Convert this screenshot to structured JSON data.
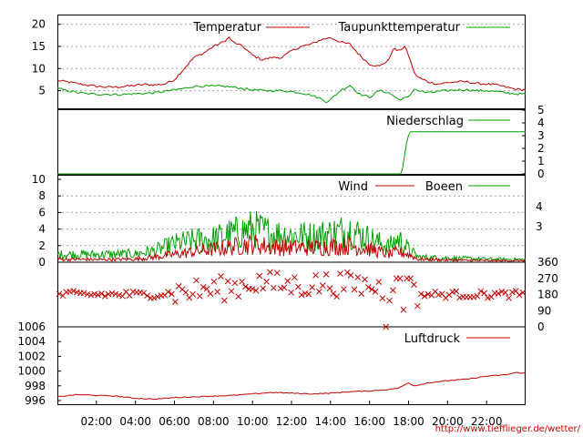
{
  "chart_data": [
    {
      "type": "line",
      "panel": "temperature",
      "x_unit": "hours",
      "xlim": [
        0,
        24
      ],
      "ylim": [
        1,
        22
      ],
      "yticks": [
        5,
        10,
        15,
        20
      ],
      "grid": true,
      "legend_placement": "top-right",
      "series": [
        {
          "name": "Temperatur",
          "color": "#c00000",
          "points": [
            [
              0,
              7.3
            ],
            [
              0.5,
              7.0
            ],
            [
              1,
              6.6
            ],
            [
              1.5,
              6.3
            ],
            [
              2,
              6.0
            ],
            [
              2.5,
              5.8
            ],
            [
              3,
              5.8
            ],
            [
              3.5,
              6.0
            ],
            [
              4,
              6.2
            ],
            [
              4.5,
              6.4
            ],
            [
              5,
              6.3
            ],
            [
              5.5,
              6.5
            ],
            [
              6,
              7.5
            ],
            [
              6.5,
              10
            ],
            [
              7,
              12.5
            ],
            [
              7.5,
              13.5
            ],
            [
              8,
              15
            ],
            [
              8.5,
              16
            ],
            [
              8.8,
              17
            ],
            [
              9,
              16
            ],
            [
              9.5,
              15
            ],
            [
              10,
              13
            ],
            [
              10.5,
              12
            ],
            [
              11,
              12.5
            ],
            [
              11.5,
              12.5
            ],
            [
              12,
              14
            ],
            [
              12.5,
              15
            ],
            [
              13,
              15.5
            ],
            [
              13.5,
              16.5
            ],
            [
              14,
              17
            ],
            [
              14.5,
              16
            ],
            [
              15,
              15.5
            ],
            [
              15.5,
              13
            ],
            [
              16,
              11
            ],
            [
              16.5,
              10.5
            ],
            [
              17,
              12
            ],
            [
              17.2,
              14.5
            ],
            [
              17.5,
              14
            ],
            [
              17.8,
              15
            ],
            [
              18,
              13
            ],
            [
              18.3,
              9
            ],
            [
              18.5,
              8
            ],
            [
              19,
              7
            ],
            [
              19.5,
              6.5
            ],
            [
              20,
              6.8
            ],
            [
              20.5,
              7
            ],
            [
              21,
              7
            ],
            [
              21.5,
              6.6
            ],
            [
              22,
              6.5
            ],
            [
              22.5,
              6.3
            ],
            [
              23,
              5.8
            ],
            [
              23.5,
              5.3
            ],
            [
              24,
              5.2
            ]
          ]
        },
        {
          "name": "Taupunkttemperatur",
          "color": "#00a000",
          "points": [
            [
              0,
              5.5
            ],
            [
              0.5,
              5.0
            ],
            [
              1,
              4.6
            ],
            [
              1.5,
              4.3
            ],
            [
              2,
              4.2
            ],
            [
              2.5,
              4.2
            ],
            [
              3,
              4.1
            ],
            [
              3.5,
              4.2
            ],
            [
              4,
              4.3
            ],
            [
              4.5,
              4.4
            ],
            [
              5,
              4.5
            ],
            [
              5.5,
              4.8
            ],
            [
              6,
              5.2
            ],
            [
              6.5,
              5.5
            ],
            [
              7,
              6
            ],
            [
              7.5,
              6
            ],
            [
              8,
              6
            ],
            [
              8.5,
              6
            ],
            [
              9,
              5.8
            ],
            [
              9.5,
              5.5
            ],
            [
              10,
              5.2
            ],
            [
              10.5,
              5
            ],
            [
              11,
              5
            ],
            [
              11.5,
              5
            ],
            [
              12,
              4.8
            ],
            [
              12.5,
              4.5
            ],
            [
              13,
              4
            ],
            [
              13.5,
              3.2
            ],
            [
              13.8,
              2.5
            ],
            [
              14,
              3
            ],
            [
              14.5,
              5
            ],
            [
              15,
              6.2
            ],
            [
              15.3,
              5
            ],
            [
              15.5,
              4.2
            ],
            [
              16,
              3.5
            ],
            [
              16.5,
              5
            ],
            [
              17,
              4.5
            ],
            [
              17.5,
              3
            ],
            [
              18,
              3.5
            ],
            [
              18.3,
              5.5
            ],
            [
              18.5,
              5
            ],
            [
              19,
              4.5
            ],
            [
              19.5,
              4.8
            ],
            [
              20,
              5
            ],
            [
              20.5,
              5.2
            ],
            [
              21,
              5.2
            ],
            [
              21.5,
              5
            ],
            [
              22,
              5
            ],
            [
              22.5,
              4.8
            ],
            [
              23,
              4.5
            ],
            [
              23.5,
              4.3
            ],
            [
              24,
              4.2
            ]
          ]
        }
      ]
    },
    {
      "type": "line",
      "panel": "precipitation",
      "x_unit": "hours",
      "xlim": [
        0,
        24
      ],
      "ylim": [
        0,
        5
      ],
      "yticks": [
        0,
        1,
        2,
        3,
        4,
        5
      ],
      "legend_placement": "top-right",
      "series": [
        {
          "name": "Niederschlag",
          "color": "#00a000",
          "points": [
            [
              0,
              0
            ],
            [
              17.65,
              0
            ],
            [
              17.8,
              1.5
            ],
            [
              17.95,
              2.9
            ],
            [
              18.1,
              3.3
            ],
            [
              24,
              3.3
            ]
          ]
        }
      ]
    },
    {
      "type": "line",
      "panel": "wind",
      "x_unit": "hours",
      "xlim": [
        0,
        24
      ],
      "ylim": [
        0,
        10
      ],
      "yticks": [
        0,
        2,
        4,
        6,
        8,
        10
      ],
      "right_tick_labels": [
        "4",
        "3"
      ],
      "grid": true,
      "legend_placement": "top-right",
      "series": [
        {
          "name": "Wind",
          "color": "#c00000",
          "envelope": [
            [
              0,
              0.6
            ],
            [
              2,
              0.5
            ],
            [
              4,
              0.6
            ],
            [
              5,
              1
            ],
            [
              6,
              1.5
            ],
            [
              7,
              2
            ],
            [
              8,
              2.5
            ],
            [
              9,
              3
            ],
            [
              10,
              3.5
            ],
            [
              11,
              3
            ],
            [
              12,
              2.8
            ],
            [
              13,
              2.8
            ],
            [
              14,
              3
            ],
            [
              15,
              3.2
            ],
            [
              16,
              2.5
            ],
            [
              17,
              1.5
            ],
            [
              17.5,
              2
            ],
            [
              18,
              1.5
            ],
            [
              18.5,
              0.6
            ],
            [
              20,
              0.4
            ],
            [
              22,
              0.3
            ],
            [
              24,
              0.3
            ]
          ]
        },
        {
          "name": "Boeen",
          "color": "#00a000",
          "envelope": [
            [
              0,
              1.5
            ],
            [
              2,
              1.5
            ],
            [
              4,
              1.6
            ],
            [
              5,
              2.2
            ],
            [
              6,
              3.5
            ],
            [
              7,
              4.2
            ],
            [
              8,
              4.5
            ],
            [
              9,
              5.5
            ],
            [
              10,
              6.5
            ],
            [
              11,
              5.5
            ],
            [
              12,
              5.2
            ],
            [
              13,
              5
            ],
            [
              14,
              5.5
            ],
            [
              15,
              6.2
            ],
            [
              16,
              4.5
            ],
            [
              17,
              3
            ],
            [
              17.5,
              4.5
            ],
            [
              18,
              2.5
            ],
            [
              18.5,
              1
            ],
            [
              20,
              0.8
            ],
            [
              22,
              0.6
            ],
            [
              24,
              0.5
            ]
          ]
        }
      ]
    },
    {
      "type": "scatter",
      "panel": "wind_direction",
      "x_unit": "hours",
      "xlim": [
        0,
        24
      ],
      "ylim": [
        0,
        360
      ],
      "yticks_right": [
        0,
        90,
        180,
        270,
        360
      ],
      "series": [
        {
          "marker": "x",
          "color": "#c00000",
          "base": [
            [
              0,
              180
            ],
            [
              5,
              180
            ],
            [
              7,
              200
            ],
            [
              9,
              220
            ],
            [
              10,
              250
            ],
            [
              12,
              230
            ],
            [
              14,
              240
            ],
            [
              16,
              230
            ],
            [
              17,
              200
            ],
            [
              17.5,
              120
            ],
            [
              18,
              180
            ],
            [
              19,
              180
            ],
            [
              24,
              180
            ]
          ]
        }
      ]
    },
    {
      "type": "line",
      "panel": "pressure",
      "x_unit": "hours",
      "xlim": [
        0,
        24
      ],
      "ylim": [
        995.5,
        1006
      ],
      "yticks": [
        996,
        998,
        1000,
        1002,
        1004,
        1006
      ],
      "legend_placement": "top-right",
      "series": [
        {
          "name": "Luftdruck",
          "color": "#c00000",
          "points": [
            [
              0,
              996.5
            ],
            [
              1,
              996.8
            ],
            [
              2,
              996.7
            ],
            [
              3,
              996.6
            ],
            [
              4,
              996.3
            ],
            [
              5,
              996.2
            ],
            [
              6,
              996.4
            ],
            [
              7,
              996.5
            ],
            [
              8,
              996.6
            ],
            [
              9,
              996.7
            ],
            [
              10,
              996.9
            ],
            [
              11,
              997.1
            ],
            [
              12,
              997.0
            ],
            [
              13,
              996.9
            ],
            [
              14,
              997.0
            ],
            [
              15,
              997.2
            ],
            [
              16,
              997.3
            ],
            [
              17,
              997.5
            ],
            [
              17.5,
              997.7
            ],
            [
              18,
              998.4
            ],
            [
              18.3,
              998.0
            ],
            [
              19,
              998.4
            ],
            [
              20,
              998.7
            ],
            [
              21,
              998.9
            ],
            [
              22,
              999.3
            ],
            [
              23,
              999.5
            ],
            [
              23.5,
              999.8
            ],
            [
              24,
              999.7
            ]
          ]
        }
      ]
    }
  ],
  "x_ticks": [
    "02:00",
    "04:00",
    "06:00",
    "08:00",
    "10:00",
    "12:00",
    "14:00",
    "16:00",
    "18:00",
    "20:00",
    "22:00"
  ],
  "x_tick_hours": [
    2,
    4,
    6,
    8,
    10,
    12,
    14,
    16,
    18,
    20,
    22
  ],
  "labels": {
    "temperatur": "Temperatur",
    "taupunkt": "Taupunkttemperatur",
    "niederschlag": "Niederschlag",
    "wind": "Wind",
    "boeen": "Boeen",
    "luftdruck": "Luftdruck",
    "wind_right_upper": "4",
    "wind_right_lower": "3"
  },
  "source": "http://www.tiefflieger.de/wetter/",
  "colors": {
    "red": "#c00000",
    "green": "#00a000",
    "source": "#d00000"
  }
}
